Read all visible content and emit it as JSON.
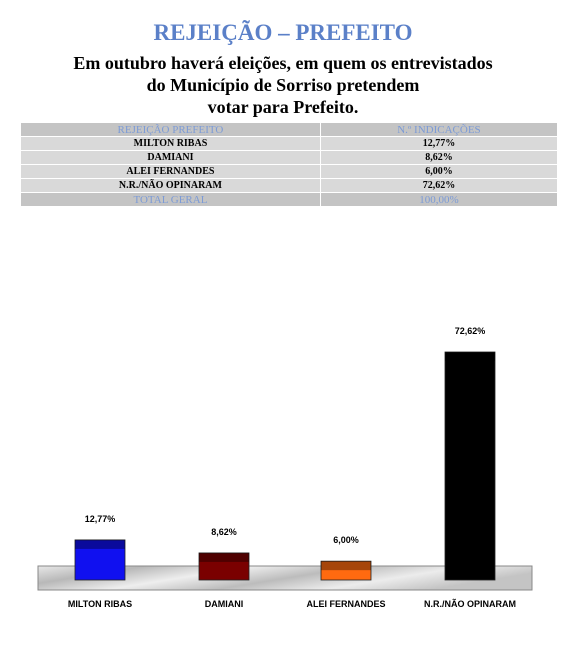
{
  "header": {
    "title": "REJEIÇÃO – PREFEITO",
    "subtitle": [
      "Em outubro haverá eleições, em quem os entrevistados",
      "do Município de Sorriso pretendem",
      "votar para Prefeito."
    ]
  },
  "table": {
    "columns": [
      "REJEIÇÃO PREFEITO",
      "N.º INDICAÇÕES"
    ],
    "rows": [
      [
        "MILTON RIBAS",
        "12,77%"
      ],
      [
        "DAMIANI",
        "8,62%"
      ],
      [
        "ALEI FERNANDES",
        "6,00%"
      ],
      [
        "N.R./NÃO OPINARAM",
        "72,62%"
      ]
    ],
    "total": [
      "TOTAL GERAL",
      "100,00%"
    ]
  },
  "chart_data": {
    "type": "bar",
    "categories": [
      "MILTON RIBAS",
      "DAMIANI",
      "ALEI FERNANDES",
      "N.R./NÃO OPINARAM"
    ],
    "values": [
      12.77,
      8.62,
      6.0,
      72.62
    ],
    "value_labels": [
      "12,77%",
      "8,62%",
      "6,00%",
      "72,62%"
    ],
    "colors": [
      "#1010f0",
      "#7a0000",
      "#ff6a10",
      "#000000"
    ]
  }
}
